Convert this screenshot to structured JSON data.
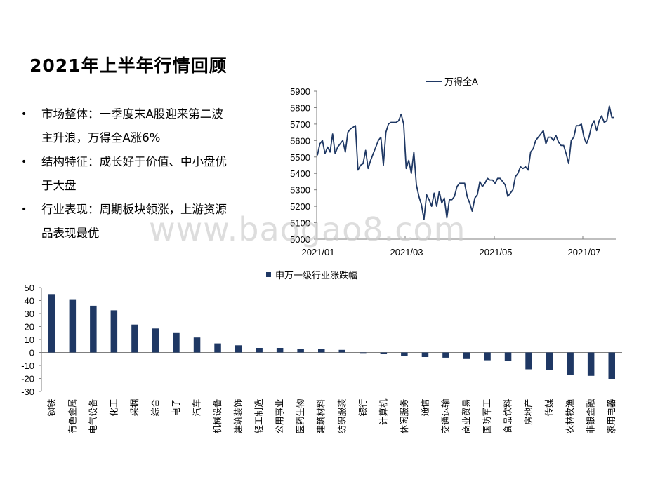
{
  "slide": {
    "title": "2021年上半年行情回顾",
    "bullets": [
      {
        "line1": "市场整体：一季度末A股迎来第二波",
        "line2": "主升浪，万得全A涨6%"
      },
      {
        "line1": "结构特征：成长好于价值、中小盘优",
        "line2": "于大盘"
      },
      {
        "line1": "行业表现：周期板块领涨，上游资源",
        "line2": "品表现最优"
      }
    ],
    "watermark": "www.baogao8.com"
  },
  "chart_data": [
    {
      "type": "line",
      "legend": "万得全A",
      "legend_position": "top",
      "ylim": [
        5000,
        5900
      ],
      "yticks": [
        5000,
        5100,
        5200,
        5300,
        5400,
        5500,
        5600,
        5700,
        5800,
        5900
      ],
      "xticks": [
        "2021/01",
        "2021/03",
        "2021/05",
        "2021/07"
      ],
      "grid": false,
      "color": "#1f3864",
      "series": [
        {
          "name": "万得全A",
          "values": [
            5510,
            5580,
            5600,
            5520,
            5560,
            5530,
            5640,
            5520,
            5560,
            5580,
            5600,
            5530,
            5650,
            5670,
            5680,
            5690,
            5420,
            5450,
            5460,
            5540,
            5430,
            5480,
            5520,
            5560,
            5600,
            5620,
            5450,
            5650,
            5700,
            5710,
            5710,
            5710,
            5720,
            5760,
            5700,
            5430,
            5480,
            5400,
            5530,
            5330,
            5260,
            5210,
            5120,
            5270,
            5240,
            5200,
            5280,
            5200,
            5290,
            5220,
            5250,
            5130,
            5240,
            5240,
            5260,
            5320,
            5340,
            5340,
            5340,
            5260,
            5220,
            5170,
            5250,
            5270,
            5350,
            5320,
            5340,
            5370,
            5360,
            5360,
            5340,
            5370,
            5370,
            5350,
            5330,
            5260,
            5280,
            5300,
            5380,
            5400,
            5440,
            5430,
            5440,
            5420,
            5530,
            5550,
            5600,
            5620,
            5640,
            5660,
            5580,
            5620,
            5620,
            5600,
            5630,
            5590,
            5570,
            5570,
            5520,
            5460,
            5600,
            5620,
            5690,
            5690,
            5700,
            5620,
            5580,
            5620,
            5690,
            5720,
            5660,
            5720,
            5750,
            5710,
            5720,
            5810,
            5740,
            5740
          ]
        }
      ]
    },
    {
      "type": "bar",
      "legend": "申万一级行业涨跌幅",
      "legend_position": "top",
      "ylim": [
        -30,
        50
      ],
      "yticks": [
        -30,
        -20,
        -10,
        0,
        10,
        20,
        30,
        40,
        50
      ],
      "color": "#1f3864",
      "categories": [
        "钢铁",
        "有色金属",
        "电气设备",
        "化工",
        "采掘",
        "综合",
        "电子",
        "汽车",
        "机械设备",
        "建筑装饰",
        "轻工制造",
        "公用事业",
        "医药生物",
        "建筑材料",
        "纺织服装",
        "银行",
        "计算机",
        "休闲服务",
        "通信",
        "交通运输",
        "商业贸易",
        "国防军工",
        "食品饮料",
        "房地产",
        "传媒",
        "农林牧渔",
        "非银金融",
        "家用电器"
      ],
      "series": [
        {
          "name": "申万一级行业涨跌幅",
          "values": [
            45,
            41,
            36,
            32.5,
            21.5,
            18.5,
            15,
            11.5,
            7,
            5.5,
            3.5,
            3.5,
            2.8,
            2.5,
            2,
            -0.3,
            -1,
            -2.5,
            -3.5,
            -4,
            -5,
            -6,
            -6.5,
            -13,
            -13.5,
            -17,
            -18,
            -20.5
          ]
        }
      ]
    }
  ]
}
